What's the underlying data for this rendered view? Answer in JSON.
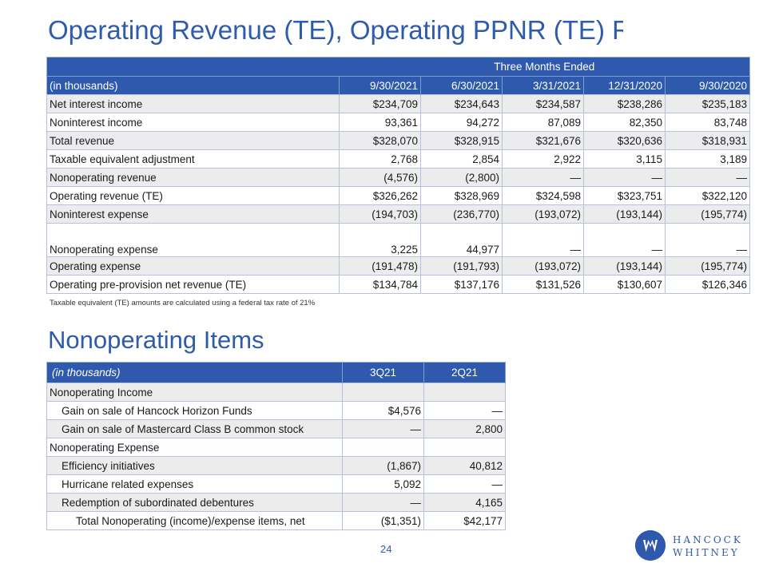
{
  "page": {
    "title": "Operating Revenue (TE), Operating PPNR (TE) Reconciliations",
    "page_number": "24",
    "footnote": "Taxable equivalent (TE) amounts are calculated using a federal tax rate of 21%",
    "section_title": "Nonoperating Items",
    "logo": {
      "line1": "HANCOCK",
      "line2": "WHITNEY",
      "icon": "hancock-whitney-logo-icon"
    }
  },
  "colors": {
    "accent": "#2f59ad",
    "title": "#2e5bab",
    "row_alt": "#ececec"
  },
  "recon": {
    "group_header": "Three Months Ended",
    "label_header": "(in thousands)",
    "columns": [
      "9/30/2021",
      "6/30/2021",
      "3/31/2021",
      "12/31/2020",
      "9/30/2020"
    ],
    "rows": [
      {
        "label": "Net interest income",
        "values": [
          "$234,709",
          "$234,643",
          "$234,587",
          "$238,286",
          "$235,183"
        ]
      },
      {
        "label": "Noninterest income",
        "values": [
          "93,361",
          "94,272",
          "87,089",
          "82,350",
          "83,748"
        ]
      },
      {
        "label": "Total revenue",
        "values": [
          "$328,070",
          "$328,915",
          "$321,676",
          "$320,636",
          "$318,931"
        ]
      },
      {
        "label": "Taxable equivalent adjustment",
        "values": [
          "2,768",
          "2,854",
          "2,922",
          "3,115",
          "3,189"
        ]
      },
      {
        "label": "Nonoperating revenue",
        "values": [
          "(4,576)",
          "(2,800)",
          "—",
          "—",
          "—"
        ]
      },
      {
        "label": "Operating revenue (TE)",
        "values": [
          "$326,262",
          "$328,969",
          "$324,598",
          "$323,751",
          "$322,120"
        ]
      },
      {
        "label": "Noninterest expense",
        "values": [
          "(194,703)",
          "(236,770)",
          "(193,072)",
          "(193,144)",
          "(195,774)"
        ]
      },
      {
        "label": "Nonoperating expense",
        "values": [
          "3,225",
          "44,977",
          "—",
          "—",
          "—"
        ]
      },
      {
        "label": "Operating expense",
        "values": [
          "(191,478)",
          "(191,793)",
          "(193,072)",
          "(193,144)",
          "(195,774)"
        ]
      },
      {
        "label": "Operating pre-provision net revenue (TE)",
        "values": [
          "$134,784",
          "$137,176",
          "$131,526",
          "$130,607",
          "$126,346"
        ]
      }
    ]
  },
  "nonop": {
    "label_header": "(in thousands)",
    "columns": [
      "3Q21",
      "2Q21"
    ],
    "rows": [
      {
        "label": "Nonoperating Income",
        "values": [
          "",
          ""
        ]
      },
      {
        "label": "Gain on sale of Hancock Horizon Funds",
        "values": [
          "$4,576",
          "—"
        ]
      },
      {
        "label": "Gain on sale of Mastercard Class B common stock",
        "values": [
          "—",
          "2,800"
        ]
      },
      {
        "label": "Nonoperating Expense",
        "values": [
          "",
          ""
        ]
      },
      {
        "label": "Efficiency initiatives",
        "values": [
          "(1,867)",
          "40,812"
        ]
      },
      {
        "label": "Hurricane related expenses",
        "values": [
          "5,092",
          "—"
        ]
      },
      {
        "label": "Redemption of subordinated debentures",
        "values": [
          "—",
          "4,165"
        ]
      },
      {
        "label": "Total Nonoperating (income)/expense items, net",
        "values": [
          "($1,351)",
          "$42,177"
        ]
      }
    ]
  }
}
